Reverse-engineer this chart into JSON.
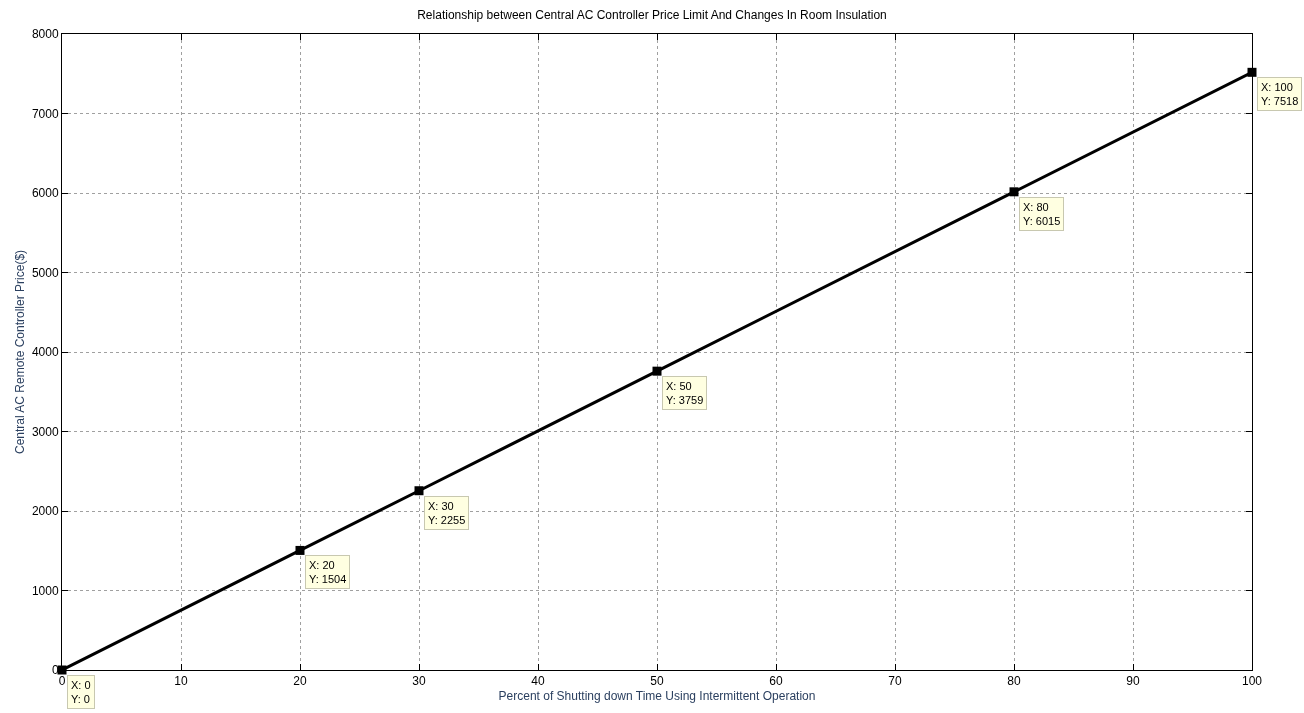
{
  "chart_data": {
    "type": "line",
    "title": "Relationship between Central AC Controller Price Limit And Changes In Room Insulation",
    "xlabel": "Percent of Shutting down Time Using Intermittent Operation",
    "ylabel": "Central AC Remote Controller Price($)",
    "x": [
      0,
      20,
      30,
      50,
      80,
      100
    ],
    "series": [
      {
        "color": "#000000",
        "values": [
          0,
          1504,
          2255,
          3759,
          6015,
          7518
        ]
      }
    ],
    "xlim": [
      0,
      100
    ],
    "xticks": [
      0,
      10,
      20,
      30,
      40,
      50,
      60,
      70,
      80,
      90,
      100
    ],
    "ylim": [
      0,
      8000
    ],
    "yticks": [
      0,
      1000,
      2000,
      3000,
      4000,
      5000,
      6000,
      7000,
      8000
    ],
    "grid": true,
    "marker": "square",
    "line_style": "solid",
    "legend": false,
    "annotations": [
      {
        "text": "X: 0\nY: 0",
        "x": 0,
        "y": 0
      },
      {
        "text": "X: 20\nY: 1504",
        "x": 20,
        "y": 1504
      },
      {
        "text": "X: 30\nY: 2255",
        "x": 30,
        "y": 2255
      },
      {
        "text": "X: 50\nY: 3759",
        "x": 50,
        "y": 3759
      },
      {
        "text": "X: 80\nY: 6015",
        "x": 80,
        "y": 6015
      },
      {
        "text": "X: 100\nY: 7518",
        "x": 100,
        "y": 7518
      }
    ]
  }
}
